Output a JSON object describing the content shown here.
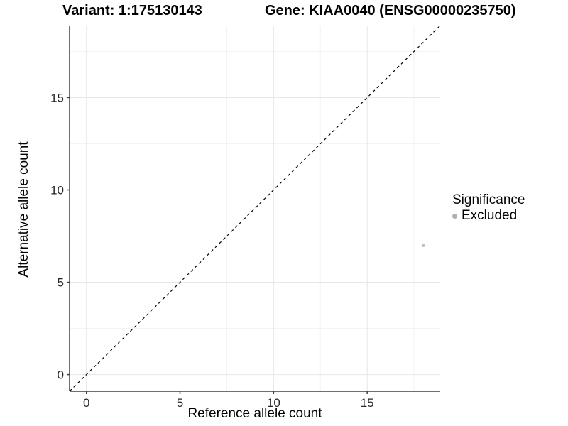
{
  "titles": {
    "variant": "Variant: 1:175130143",
    "gene": "Gene: KIAA0040 (ENSG00000235750)"
  },
  "chart_data": {
    "type": "scatter",
    "xlabel": "Reference allele count",
    "ylabel": "Alternative allele count",
    "xlim": [
      -0.9,
      18.9
    ],
    "ylim": [
      -0.9,
      18.9
    ],
    "x_ticks": [
      0,
      5,
      10,
      15
    ],
    "y_ticks": [
      0,
      5,
      10,
      15
    ],
    "x_minor_ticks": [
      2.5,
      7.5,
      12.5,
      17.5
    ],
    "y_minor_ticks": [
      2.5,
      7.5,
      12.5,
      17.5
    ],
    "grid": "on",
    "identity_line": {
      "slope": 1,
      "intercept": 0,
      "style": "dashed",
      "color": "#000000"
    },
    "series": [
      {
        "name": "Excluded",
        "color": "#bfbfbf",
        "points": [
          [
            18,
            7
          ]
        ]
      }
    ],
    "legend": {
      "title": "Significance",
      "position": "right",
      "items": [
        {
          "label": "Excluded",
          "color": "#b0b0b0"
        }
      ]
    }
  },
  "style_colors": {
    "axis_line": "#404040",
    "tick_label": "#262626",
    "grid_major": "#e7e7e7",
    "grid_minor": "#f2f2f2",
    "background": "#ffffff"
  }
}
